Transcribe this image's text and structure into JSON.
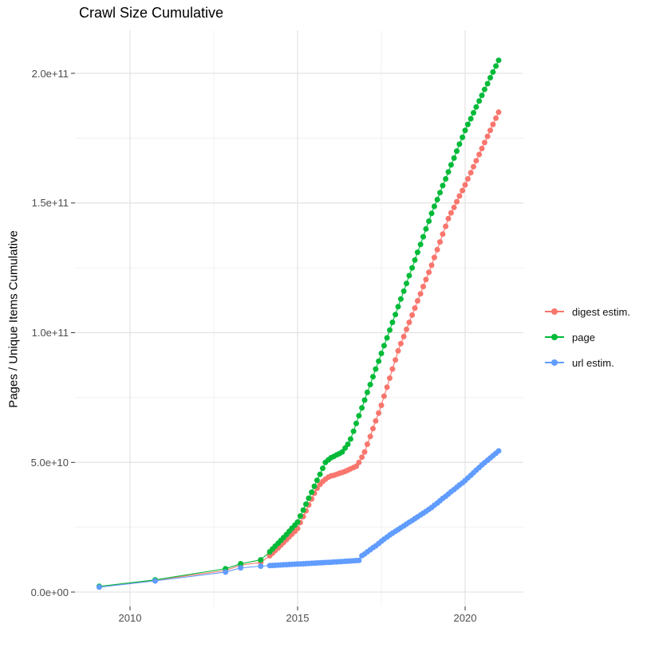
{
  "title": "Crawl Size Cumulative",
  "y_axis_title": "Pages / Unique Items Cumulative",
  "legend": {
    "items": [
      {
        "label": "digest estim.",
        "color": "#F8766D"
      },
      {
        "label": "page",
        "color": "#00BA38"
      },
      {
        "label": "url estim.",
        "color": "#619CFF"
      }
    ]
  },
  "chart_data": {
    "type": "scatter",
    "title": "Crawl Size Cumulative",
    "xlabel": "",
    "ylabel": "Pages / Unique Items Cumulative",
    "x_ticks": [
      {
        "value": 2010,
        "label": "2010"
      },
      {
        "value": 2015,
        "label": "2015"
      },
      {
        "value": 2020,
        "label": "2020"
      }
    ],
    "x_minor": [
      2012.5,
      2017.5
    ],
    "y_ticks": [
      {
        "value": 0,
        "label": "0.0e+00"
      },
      {
        "value": 50,
        "label": "5.0e+10"
      },
      {
        "value": 100,
        "label": "1.0e+11"
      },
      {
        "value": 150,
        "label": "1.5e+11"
      },
      {
        "value": 200,
        "label": "2.0e+11"
      }
    ],
    "y_minor": [
      25,
      75,
      125,
      175
    ],
    "value_unit": "billions of pages / items (1e9)",
    "xlim": [
      2008.38,
      2021.74
    ],
    "ylim_billions": [
      -5,
      216
    ],
    "grid": "major+minor, light gray on white",
    "legend_position": "right",
    "marker": "filled circle joined by thin line",
    "series": [
      {
        "name": "digest estim.",
        "color": "#F8766D",
        "points": [
          [
            2009.08,
            2.1
          ],
          [
            2010.75,
            4.6
          ],
          [
            2012.85,
            8.3
          ],
          [
            2013.3,
            10.4
          ],
          [
            2013.9,
            11.4
          ],
          [
            2014.17,
            14.0
          ],
          [
            2014.25,
            15.0
          ],
          [
            2014.33,
            16.0
          ],
          [
            2014.42,
            17.0
          ],
          [
            2014.5,
            18.1
          ],
          [
            2014.58,
            19.1
          ],
          [
            2014.67,
            20.2
          ],
          [
            2014.75,
            21.3
          ],
          [
            2014.83,
            22.3
          ],
          [
            2014.92,
            23.4
          ],
          [
            2015.0,
            24.5
          ],
          [
            2015.08,
            26.8
          ],
          [
            2015.17,
            29.1
          ],
          [
            2015.25,
            31.3
          ],
          [
            2015.33,
            33.6
          ],
          [
            2015.42,
            35.9
          ],
          [
            2015.5,
            38.1
          ],
          [
            2015.58,
            40.0
          ],
          [
            2015.67,
            41.5
          ],
          [
            2015.75,
            42.6
          ],
          [
            2015.83,
            43.5
          ],
          [
            2015.92,
            44.3
          ],
          [
            2016.0,
            44.8
          ],
          [
            2016.08,
            45.0
          ],
          [
            2016.17,
            45.4
          ],
          [
            2016.25,
            45.8
          ],
          [
            2016.33,
            46.1
          ],
          [
            2016.42,
            46.5
          ],
          [
            2016.5,
            47.0
          ],
          [
            2016.58,
            47.5
          ],
          [
            2016.67,
            48.0
          ],
          [
            2016.75,
            48.5
          ],
          [
            2016.83,
            50.0
          ],
          [
            2016.92,
            52.0
          ],
          [
            2017.0,
            54.0
          ],
          [
            2017.08,
            57.0
          ],
          [
            2017.17,
            60.0
          ],
          [
            2017.25,
            63.0
          ],
          [
            2017.33,
            66.0
          ],
          [
            2017.42,
            69.0
          ],
          [
            2017.5,
            72.0
          ],
          [
            2017.58,
            75.5
          ],
          [
            2017.67,
            79.0
          ],
          [
            2017.75,
            82.5
          ],
          [
            2017.83,
            86.0
          ],
          [
            2017.92,
            89.5
          ],
          [
            2018.0,
            93.0
          ],
          [
            2018.08,
            95.8
          ],
          [
            2018.17,
            98.5
          ],
          [
            2018.25,
            101.3
          ],
          [
            2018.33,
            104.0
          ],
          [
            2018.42,
            106.8
          ],
          [
            2018.5,
            109.5
          ],
          [
            2018.58,
            112.3
          ],
          [
            2018.67,
            115.0
          ],
          [
            2018.75,
            117.8
          ],
          [
            2018.83,
            120.5
          ],
          [
            2018.92,
            123.3
          ],
          [
            2019.0,
            126.0
          ],
          [
            2019.08,
            129.0
          ],
          [
            2019.17,
            132.0
          ],
          [
            2019.25,
            135.0
          ],
          [
            2019.33,
            138.0
          ],
          [
            2019.42,
            141.0
          ],
          [
            2019.5,
            144.0
          ],
          [
            2019.58,
            146.2
          ],
          [
            2019.67,
            148.3
          ],
          [
            2019.75,
            150.5
          ],
          [
            2019.83,
            152.7
          ],
          [
            2019.92,
            154.8
          ],
          [
            2020.0,
            157.0
          ],
          [
            2020.08,
            159.3
          ],
          [
            2020.17,
            161.7
          ],
          [
            2020.25,
            164.0
          ],
          [
            2020.33,
            166.3
          ],
          [
            2020.42,
            168.7
          ],
          [
            2020.5,
            171.0
          ],
          [
            2020.58,
            173.3
          ],
          [
            2020.67,
            175.7
          ],
          [
            2020.75,
            178.0
          ],
          [
            2020.83,
            180.3
          ],
          [
            2020.92,
            182.7
          ],
          [
            2021.0,
            185.0
          ]
        ]
      },
      {
        "name": "page",
        "color": "#00BA38",
        "points": [
          [
            2009.08,
            2.2
          ],
          [
            2010.75,
            4.7
          ],
          [
            2012.85,
            9.0
          ],
          [
            2013.3,
            10.9
          ],
          [
            2013.9,
            12.4
          ],
          [
            2014.17,
            15.5
          ],
          [
            2014.25,
            16.6
          ],
          [
            2014.33,
            17.7
          ],
          [
            2014.42,
            18.8
          ],
          [
            2014.5,
            19.9
          ],
          [
            2014.58,
            21.0
          ],
          [
            2014.67,
            22.2
          ],
          [
            2014.75,
            23.4
          ],
          [
            2014.83,
            24.6
          ],
          [
            2014.92,
            25.8
          ],
          [
            2015.0,
            27.0
          ],
          [
            2015.08,
            29.3
          ],
          [
            2015.17,
            31.6
          ],
          [
            2015.25,
            33.9
          ],
          [
            2015.33,
            36.2
          ],
          [
            2015.42,
            38.5
          ],
          [
            2015.5,
            40.8
          ],
          [
            2015.58,
            43.1
          ],
          [
            2015.67,
            45.4
          ],
          [
            2015.75,
            47.7
          ],
          [
            2015.83,
            50.0
          ],
          [
            2015.92,
            51.0
          ],
          [
            2016.0,
            51.8
          ],
          [
            2016.08,
            52.3
          ],
          [
            2016.17,
            52.9
          ],
          [
            2016.25,
            53.4
          ],
          [
            2016.33,
            54.0
          ],
          [
            2016.42,
            55.5
          ],
          [
            2016.5,
            57.0
          ],
          [
            2016.58,
            59.0
          ],
          [
            2016.67,
            62.0
          ],
          [
            2016.75,
            65.0
          ],
          [
            2016.83,
            68.0
          ],
          [
            2016.92,
            71.0
          ],
          [
            2017.0,
            74.0
          ],
          [
            2017.08,
            77.0
          ],
          [
            2017.17,
            80.0
          ],
          [
            2017.25,
            83.0
          ],
          [
            2017.33,
            86.0
          ],
          [
            2017.42,
            89.0
          ],
          [
            2017.5,
            92.0
          ],
          [
            2017.58,
            95.0
          ],
          [
            2017.67,
            98.0
          ],
          [
            2017.75,
            101.0
          ],
          [
            2017.83,
            104.0
          ],
          [
            2017.92,
            107.0
          ],
          [
            2018.0,
            110.0
          ],
          [
            2018.08,
            113.0
          ],
          [
            2018.17,
            116.0
          ],
          [
            2018.25,
            119.0
          ],
          [
            2018.33,
            122.0
          ],
          [
            2018.42,
            125.0
          ],
          [
            2018.5,
            128.0
          ],
          [
            2018.58,
            131.0
          ],
          [
            2018.67,
            134.0
          ],
          [
            2018.75,
            137.0
          ],
          [
            2018.83,
            140.0
          ],
          [
            2018.92,
            143.0
          ],
          [
            2019.0,
            146.0
          ],
          [
            2019.08,
            148.7
          ],
          [
            2019.17,
            151.3
          ],
          [
            2019.25,
            154.0
          ],
          [
            2019.33,
            156.7
          ],
          [
            2019.42,
            159.3
          ],
          [
            2019.5,
            162.0
          ],
          [
            2019.58,
            164.7
          ],
          [
            2019.67,
            167.3
          ],
          [
            2019.75,
            170.0
          ],
          [
            2019.83,
            172.7
          ],
          [
            2019.92,
            175.3
          ],
          [
            2020.0,
            178.0
          ],
          [
            2020.08,
            180.3
          ],
          [
            2020.17,
            182.5
          ],
          [
            2020.25,
            184.8
          ],
          [
            2020.33,
            187.0
          ],
          [
            2020.42,
            189.3
          ],
          [
            2020.5,
            191.5
          ],
          [
            2020.58,
            193.8
          ],
          [
            2020.67,
            196.0
          ],
          [
            2020.75,
            198.3
          ],
          [
            2020.83,
            200.5
          ],
          [
            2020.92,
            202.8
          ],
          [
            2021.0,
            205.0
          ]
        ]
      },
      {
        "name": "url estim.",
        "color": "#619CFF",
        "points": [
          [
            2009.08,
            1.9
          ],
          [
            2010.75,
            4.3
          ],
          [
            2012.85,
            7.7
          ],
          [
            2013.3,
            9.3
          ],
          [
            2013.9,
            10.0
          ],
          [
            2014.17,
            10.2
          ],
          [
            2014.25,
            10.26
          ],
          [
            2014.33,
            10.32
          ],
          [
            2014.42,
            10.38
          ],
          [
            2014.5,
            10.44
          ],
          [
            2014.58,
            10.5
          ],
          [
            2014.67,
            10.56
          ],
          [
            2014.75,
            10.62
          ],
          [
            2014.83,
            10.68
          ],
          [
            2014.92,
            10.74
          ],
          [
            2015.0,
            10.8
          ],
          [
            2015.08,
            10.86
          ],
          [
            2015.17,
            10.92
          ],
          [
            2015.25,
            10.98
          ],
          [
            2015.33,
            11.04
          ],
          [
            2015.42,
            11.1
          ],
          [
            2015.5,
            11.16
          ],
          [
            2015.58,
            11.22
          ],
          [
            2015.67,
            11.28
          ],
          [
            2015.75,
            11.33
          ],
          [
            2015.83,
            11.39
          ],
          [
            2015.92,
            11.45
          ],
          [
            2016.0,
            11.5
          ],
          [
            2016.08,
            11.57
          ],
          [
            2016.17,
            11.64
          ],
          [
            2016.25,
            11.71
          ],
          [
            2016.33,
            11.78
          ],
          [
            2016.42,
            11.85
          ],
          [
            2016.5,
            11.92
          ],
          [
            2016.58,
            11.99
          ],
          [
            2016.67,
            12.06
          ],
          [
            2016.75,
            12.13
          ],
          [
            2016.83,
            12.2
          ],
          [
            2016.92,
            14.0
          ],
          [
            2017.0,
            14.7
          ],
          [
            2017.08,
            15.5
          ],
          [
            2017.17,
            16.3
          ],
          [
            2017.25,
            17.1
          ],
          [
            2017.33,
            17.8
          ],
          [
            2017.42,
            18.7
          ],
          [
            2017.5,
            19.6
          ],
          [
            2017.58,
            20.4
          ],
          [
            2017.67,
            21.2
          ],
          [
            2017.75,
            22.0
          ],
          [
            2017.83,
            22.7
          ],
          [
            2017.92,
            23.4
          ],
          [
            2018.0,
            24.1
          ],
          [
            2018.08,
            24.8
          ],
          [
            2018.17,
            25.5
          ],
          [
            2018.25,
            26.2
          ],
          [
            2018.33,
            26.9
          ],
          [
            2018.42,
            27.6
          ],
          [
            2018.5,
            28.3
          ],
          [
            2018.58,
            29.0
          ],
          [
            2018.67,
            29.7
          ],
          [
            2018.75,
            30.4
          ],
          [
            2018.83,
            31.1
          ],
          [
            2018.92,
            31.9
          ],
          [
            2019.0,
            32.6
          ],
          [
            2019.08,
            33.5
          ],
          [
            2019.17,
            34.3
          ],
          [
            2019.25,
            35.2
          ],
          [
            2019.33,
            36.1
          ],
          [
            2019.42,
            36.9
          ],
          [
            2019.5,
            37.8
          ],
          [
            2019.58,
            38.7
          ],
          [
            2019.67,
            39.5
          ],
          [
            2019.75,
            40.4
          ],
          [
            2019.83,
            41.3
          ],
          [
            2019.92,
            42.1
          ],
          [
            2020.0,
            43.0
          ],
          [
            2020.08,
            44.0
          ],
          [
            2020.17,
            45.0
          ],
          [
            2020.25,
            46.0
          ],
          [
            2020.33,
            47.0
          ],
          [
            2020.42,
            48.0
          ],
          [
            2020.5,
            49.0
          ],
          [
            2020.58,
            49.9
          ],
          [
            2020.67,
            50.8
          ],
          [
            2020.75,
            51.7
          ],
          [
            2020.83,
            52.6
          ],
          [
            2020.92,
            53.5
          ],
          [
            2021.0,
            54.4
          ]
        ]
      }
    ]
  }
}
